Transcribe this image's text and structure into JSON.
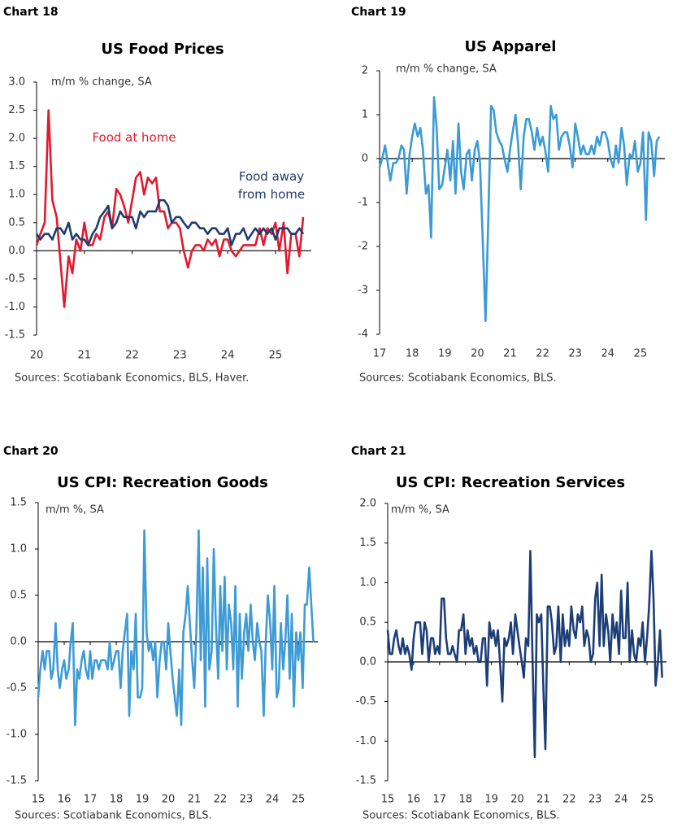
{
  "chart_data": [
    {
      "type": "line",
      "label": "Chart 18",
      "title": "US Food Prices",
      "ylabel": "m/m % change, SA",
      "source": "Sources: Scotiabank Economics, BLS, Haver.",
      "x": [
        20,
        20.08,
        20.17,
        20.25,
        20.33,
        20.42,
        20.5,
        20.58,
        20.67,
        20.75,
        20.83,
        20.92,
        21,
        21.08,
        21.17,
        21.25,
        21.33,
        21.42,
        21.5,
        21.58,
        21.67,
        21.75,
        21.83,
        21.92,
        22,
        22.08,
        22.17,
        22.25,
        22.33,
        22.42,
        22.5,
        22.58,
        22.67,
        22.75,
        22.83,
        22.92,
        23,
        23.08,
        23.17,
        23.25,
        23.33,
        23.42,
        23.5,
        23.58,
        23.67,
        23.75,
        23.83,
        23.92,
        24,
        24.08,
        24.17,
        24.25,
        24.33,
        24.42,
        24.5,
        24.58,
        24.67,
        24.75,
        24.83,
        24.92,
        25,
        25.08,
        25.17,
        25.25,
        25.33,
        25.42,
        25.5,
        25.58
      ],
      "series": [
        {
          "name": "Food at home",
          "color": "#e3182d",
          "values": [
            0.1,
            0.3,
            0.5,
            2.5,
            0.9,
            0.6,
            -0.2,
            -1.0,
            -0.1,
            -0.4,
            0.2,
            0.0,
            0.5,
            0.1,
            0.1,
            0.3,
            0.2,
            0.6,
            0.7,
            0.4,
            1.1,
            1.0,
            0.8,
            0.5,
            0.9,
            1.3,
            1.4,
            1.0,
            1.3,
            1.2,
            1.3,
            0.7,
            0.7,
            0.4,
            0.5,
            0.5,
            0.4,
            0.0,
            -0.3,
            0.0,
            0.1,
            0.1,
            0.0,
            0.2,
            0.1,
            0.2,
            -0.1,
            0.2,
            0.2,
            0.0,
            -0.1,
            0.0,
            0.1,
            0.1,
            0.1,
            0.1,
            0.4,
            0.1,
            0.4,
            0.3,
            0.5,
            0.0,
            0.5,
            -0.4,
            0.3,
            0.3,
            -0.1,
            0.6
          ]
        },
        {
          "name": "Food away from home",
          "color": "#1f3c6e",
          "values": [
            0.3,
            0.2,
            0.3,
            0.3,
            0.2,
            0.4,
            0.4,
            0.3,
            0.5,
            0.2,
            0.3,
            0.2,
            0.2,
            0.1,
            0.3,
            0.4,
            0.6,
            0.7,
            0.8,
            0.4,
            0.5,
            0.7,
            0.6,
            0.6,
            0.6,
            0.4,
            0.7,
            0.6,
            0.7,
            0.7,
            0.7,
            0.9,
            0.9,
            0.8,
            0.5,
            0.6,
            0.6,
            0.5,
            0.4,
            0.5,
            0.5,
            0.4,
            0.4,
            0.3,
            0.4,
            0.4,
            0.3,
            0.3,
            0.4,
            0.1,
            0.3,
            0.3,
            0.4,
            0.2,
            0.3,
            0.4,
            0.3,
            0.4,
            0.3,
            0.4,
            0.2,
            0.4,
            0.4,
            0.4,
            0.3,
            0.3,
            0.4,
            0.3
          ]
        }
      ],
      "xlim": [
        20,
        25.75
      ],
      "xticks": [
        20,
        21,
        22,
        23,
        24,
        25
      ],
      "ylim": [
        -1.5,
        3.0
      ],
      "yticks": [
        {
          "value": 3,
          "label": "3.0"
        },
        2.5,
        {
          "value": 2,
          "label": "2.0"
        },
        1.5,
        {
          "value": 1,
          "label": "1.0"
        },
        0.5,
        {
          "value": 0,
          "label": "0.0"
        },
        -0.5,
        {
          "value": -1,
          "label": "-1.0"
        },
        -1.5
      ]
    },
    {
      "type": "line",
      "label": "Chart 19",
      "title": "US Apparel",
      "ylabel": "m/m % change, SA",
      "source": "Sources: Scotiabank Economics, BLS.",
      "x": [
        17,
        17.08,
        17.17,
        17.25,
        17.33,
        17.42,
        17.5,
        17.58,
        17.67,
        17.75,
        17.83,
        17.92,
        18,
        18.08,
        18.17,
        18.25,
        18.33,
        18.42,
        18.5,
        18.58,
        18.67,
        18.75,
        18.83,
        18.92,
        19,
        19.08,
        19.17,
        19.25,
        19.33,
        19.42,
        19.5,
        19.58,
        19.67,
        19.75,
        19.83,
        19.92,
        20,
        20.08,
        20.17,
        20.25,
        20.33,
        20.42,
        20.5,
        20.58,
        20.67,
        20.75,
        20.83,
        20.92,
        21,
        21.08,
        21.17,
        21.25,
        21.33,
        21.42,
        21.5,
        21.58,
        21.67,
        21.75,
        21.83,
        21.92,
        22,
        22.08,
        22.17,
        22.25,
        22.33,
        22.42,
        22.5,
        22.58,
        22.67,
        22.75,
        22.83,
        22.92,
        23,
        23.08,
        23.17,
        23.25,
        23.33,
        23.42,
        23.5,
        23.58,
        23.67,
        23.75,
        23.83,
        23.92,
        24,
        24.08,
        24.17,
        24.25,
        24.33,
        24.42,
        24.5,
        24.58,
        24.67,
        24.75,
        24.83,
        24.92,
        25,
        25.08,
        25.17,
        25.25,
        25.33,
        25.42,
        25.5,
        25.58
      ],
      "series": [
        {
          "color": "#3a9bd5",
          "values": [
            -0.2,
            0.0,
            0.3,
            -0.1,
            -0.5,
            -0.1,
            -0.1,
            0.0,
            0.3,
            0.2,
            -0.8,
            0.1,
            0.5,
            0.8,
            0.5,
            0.7,
            0.2,
            -0.8,
            -0.6,
            -1.8,
            1.4,
            0.7,
            -0.7,
            -0.6,
            -0.2,
            0.2,
            -0.5,
            0.4,
            -0.8,
            0.8,
            -0.3,
            -0.7,
            0.1,
            0.2,
            -0.5,
            0.2,
            0.4,
            -0.1,
            -2.0,
            -3.7,
            -1.5,
            1.2,
            1.1,
            0.6,
            0.4,
            0.3,
            0.0,
            -0.3,
            0.2,
            0.6,
            1.0,
            0.3,
            -0.7,
            0.5,
            0.9,
            0.9,
            0.6,
            0.2,
            0.7,
            0.3,
            0.5,
            0.2,
            -0.3,
            1.2,
            0.9,
            1.0,
            0.2,
            0.5,
            0.6,
            0.6,
            0.3,
            -0.2,
            0.8,
            0.5,
            0.1,
            0.3,
            0.1,
            0.1,
            0.3,
            0.1,
            0.5,
            0.3,
            0.6,
            0.6,
            0.4,
            0.0,
            -0.2,
            0.3,
            -0.1,
            0.7,
            0.3,
            -0.6,
            0.1,
            0.0,
            0.4,
            -0.3,
            -0.1,
            0.6,
            -1.4,
            0.6,
            0.4,
            -0.4,
            0.4,
            0.5
          ]
        }
      ],
      "xlim": [
        17,
        25.75
      ],
      "xticks": [
        17,
        18,
        19,
        20,
        21,
        22,
        23,
        24,
        25
      ],
      "ylim": [
        -4,
        2
      ],
      "yticks": [
        2,
        1,
        0,
        -1,
        -2,
        -3,
        -4
      ]
    },
    {
      "type": "line",
      "label": "Chart 20",
      "title": "US CPI: Recreation Goods",
      "ylabel": "m/m %, SA",
      "source": "Sources: Scotiabank Economics, BLS.",
      "x": [
        15,
        15.08,
        15.17,
        15.25,
        15.33,
        15.42,
        15.5,
        15.58,
        15.67,
        15.75,
        15.83,
        15.92,
        16,
        16.08,
        16.17,
        16.25,
        16.33,
        16.42,
        16.5,
        16.58,
        16.67,
        16.75,
        16.83,
        16.92,
        17,
        17.08,
        17.17,
        17.25,
        17.33,
        17.42,
        17.5,
        17.58,
        17.67,
        17.75,
        17.83,
        17.92,
        18,
        18.08,
        18.17,
        18.25,
        18.33,
        18.42,
        18.5,
        18.58,
        18.67,
        18.75,
        18.83,
        18.92,
        19,
        19.08,
        19.17,
        19.25,
        19.33,
        19.42,
        19.5,
        19.58,
        19.67,
        19.75,
        19.83,
        19.92,
        20,
        20.08,
        20.17,
        20.25,
        20.33,
        20.42,
        20.5,
        20.58,
        20.67,
        20.75,
        20.83,
        20.92,
        21,
        21.08,
        21.17,
        21.25,
        21.33,
        21.42,
        21.5,
        21.58,
        21.67,
        21.75,
        21.83,
        21.92,
        22,
        22.08,
        22.17,
        22.25,
        22.33,
        22.42,
        22.5,
        22.58,
        22.67,
        22.75,
        22.83,
        22.92,
        23,
        23.08,
        23.17,
        23.25,
        23.33,
        23.42,
        23.5,
        23.58,
        23.67,
        23.75,
        23.83,
        23.92,
        24,
        24.08,
        24.17,
        24.25,
        24.33,
        24.42,
        24.5,
        24.58,
        24.67,
        24.75,
        24.83,
        24.92,
        25,
        25.08,
        25.17,
        25.25,
        25.33,
        25.42,
        25.5,
        25.58
      ],
      "series": [
        {
          "color": "#3d9bd6",
          "values": [
            -0.6,
            -0.3,
            -0.1,
            -0.3,
            -0.1,
            -0.1,
            -0.4,
            -0.3,
            0.2,
            -0.3,
            -0.5,
            -0.3,
            -0.2,
            -0.4,
            -0.3,
            0.0,
            0.2,
            -0.9,
            -0.3,
            -0.4,
            -0.2,
            -0.1,
            -0.3,
            -0.4,
            -0.1,
            -0.4,
            -0.2,
            -0.2,
            -0.3,
            -0.2,
            -0.2,
            -0.2,
            -0.3,
            0.0,
            -0.3,
            -0.2,
            -0.1,
            -0.1,
            -0.5,
            -0.1,
            0.1,
            0.3,
            -0.8,
            -0.1,
            -0.3,
            0.3,
            -0.6,
            -0.6,
            -0.5,
            1.2,
            0.1,
            -0.1,
            0.0,
            -0.2,
            0.0,
            -0.6,
            -0.2,
            0.0,
            0.0,
            -0.3,
            0.2,
            -0.1,
            -0.4,
            -0.6,
            -0.8,
            -0.3,
            -0.9,
            0.1,
            0.3,
            0.6,
            0.2,
            -0.2,
            -0.5,
            0.1,
            1.2,
            -0.2,
            0.8,
            -0.7,
            0.9,
            -0.3,
            -0.1,
            1.0,
            0.2,
            -0.4,
            0.6,
            -0.1,
            0.7,
            -0.3,
            0.4,
            0.2,
            -0.3,
            0.6,
            -0.7,
            0.3,
            -0.4,
            0.1,
            0.3,
            -0.1,
            0.4,
            0.0,
            -0.2,
            0.2,
            0.0,
            -0.1,
            -0.8,
            0.0,
            0.5,
            0.2,
            -0.3,
            0.6,
            -0.6,
            -0.5,
            0.2,
            -0.3,
            0.0,
            0.5,
            -0.4,
            0.3,
            -0.7,
            0.1,
            -0.2,
            0.1,
            -0.5,
            0.4,
            0.4,
            0.8,
            0.4,
            0.0
          ]
        }
      ],
      "xlim": [
        15,
        25.75
      ],
      "xticks": [
        15,
        16,
        17,
        18,
        19,
        20,
        21,
        22,
        23,
        24,
        25
      ],
      "ylim": [
        -1.5,
        1.5
      ],
      "yticks": [
        1.5,
        {
          "value": 1,
          "label": "1.0"
        },
        0.5,
        {
          "value": 0,
          "label": "0.0"
        },
        -0.5,
        {
          "value": -1,
          "label": "-1.0"
        },
        -1.5
      ]
    },
    {
      "type": "line",
      "label": "Chart 21",
      "title": "US CPI: Recreation Services",
      "ylabel": "m/m %, SA",
      "source": "Sources: Scotiabank Economics, BLS.",
      "x": [
        15,
        15.08,
        15.17,
        15.25,
        15.33,
        15.42,
        15.5,
        15.58,
        15.67,
        15.75,
        15.83,
        15.92,
        16,
        16.08,
        16.17,
        16.25,
        16.33,
        16.42,
        16.5,
        16.58,
        16.67,
        16.75,
        16.83,
        16.92,
        17,
        17.08,
        17.17,
        17.25,
        17.33,
        17.42,
        17.5,
        17.58,
        17.67,
        17.75,
        17.83,
        17.92,
        18,
        18.08,
        18.17,
        18.25,
        18.33,
        18.42,
        18.5,
        18.58,
        18.67,
        18.75,
        18.83,
        18.92,
        19,
        19.08,
        19.17,
        19.25,
        19.33,
        19.42,
        19.5,
        19.58,
        19.67,
        19.75,
        19.83,
        19.92,
        20,
        20.08,
        20.17,
        20.25,
        20.33,
        20.42,
        20.5,
        20.58,
        20.67,
        20.75,
        20.83,
        20.92,
        21,
        21.08,
        21.17,
        21.25,
        21.33,
        21.42,
        21.5,
        21.58,
        21.67,
        21.75,
        21.83,
        21.92,
        22,
        22.08,
        22.17,
        22.25,
        22.33,
        22.42,
        22.5,
        22.58,
        22.67,
        22.75,
        22.83,
        22.92,
        23,
        23.08,
        23.17,
        23.25,
        23.33,
        23.42,
        23.5,
        23.58,
        23.67,
        23.75,
        23.83,
        23.92,
        24,
        24.08,
        24.17,
        24.25,
        24.33,
        24.42,
        24.5,
        24.58,
        24.67,
        24.75,
        24.83,
        24.92,
        25,
        25.08,
        25.17,
        25.25,
        25.33,
        25.42,
        25.5,
        25.58
      ],
      "series": [
        {
          "color": "#1c3e78",
          "values": [
            0.4,
            0.1,
            0.1,
            0.3,
            0.4,
            0.2,
            0.1,
            0.3,
            0.1,
            0.2,
            0.1,
            -0.1,
            0.3,
            0.5,
            0.5,
            0.5,
            0.1,
            0.5,
            0.4,
            0.0,
            0.3,
            0.3,
            0.1,
            0.2,
            0.1,
            0.8,
            0.8,
            0.3,
            0.1,
            0.1,
            0.2,
            0.1,
            0.0,
            0.4,
            0.4,
            0.6,
            0.1,
            0.4,
            0.2,
            0.3,
            0.1,
            0.2,
            0.0,
            0.0,
            0.3,
            0.3,
            -0.3,
            0.5,
            0.3,
            0.4,
            0.2,
            0.4,
            0.0,
            -0.5,
            0.3,
            0.2,
            0.3,
            0.5,
            0.1,
            0.6,
            0.4,
            0.2,
            0.0,
            -0.2,
            0.3,
            0.2,
            1.4,
            0.1,
            -1.2,
            0.6,
            0.5,
            0.6,
            -0.3,
            -1.1,
            0.7,
            0.7,
            0.5,
            0.1,
            0.2,
            0.7,
            0.0,
            0.6,
            0.2,
            0.4,
            0.2,
            0.7,
            0.4,
            0.3,
            0.6,
            0.5,
            0.7,
            0.2,
            0.4,
            0.3,
            0.0,
            0.1,
            0.8,
            1.0,
            0.2,
            1.1,
            0.2,
            0.6,
            0.4,
            0.0,
            0.6,
            0.3,
            0.5,
            0.1,
            0.9,
            0.3,
            0.3,
            1.0,
            0.0,
            0.4,
            0.1,
            0.0,
            0.3,
            0.2,
            0.5,
            0.0,
            0.3,
            0.7,
            1.4,
            0.8,
            -0.3,
            0.0,
            0.4,
            -0.2
          ]
        }
      ],
      "xlim": [
        15,
        25.75
      ],
      "xticks": [
        15,
        16,
        17,
        18,
        19,
        20,
        21,
        22,
        23,
        24,
        25
      ],
      "ylim": [
        -1.5,
        2.0
      ],
      "yticks": [
        {
          "value": 2,
          "label": "2.0"
        },
        1.5,
        {
          "value": 1,
          "label": "1.0"
        },
        0.5,
        {
          "value": 0,
          "label": "0.0"
        },
        -0.5,
        {
          "value": -1,
          "label": "-1.0"
        },
        -1.5
      ]
    }
  ]
}
